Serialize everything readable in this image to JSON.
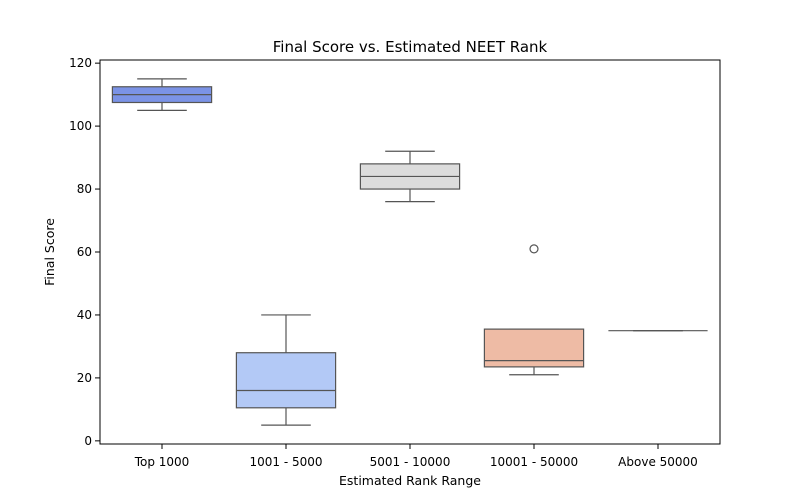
{
  "chart_data": {
    "type": "box",
    "title": "Final Score vs. Estimated NEET Rank",
    "xlabel": "Estimated Rank Range",
    "ylabel": "Final Score",
    "ylim": [
      -1,
      121
    ],
    "yticks": [
      0,
      20,
      40,
      60,
      80,
      100,
      120
    ],
    "categories": [
      "Top 1000",
      "1001 - 5000",
      "5001 - 10000",
      "10001 - 50000",
      "Above 50000"
    ],
    "grid": false,
    "boxes": [
      {
        "category": "Top 1000",
        "whisker_low": 105,
        "q1": 107.5,
        "median": 110,
        "q3": 112.5,
        "whisker_high": 115,
        "outliers": [],
        "color": "#7b93e6"
      },
      {
        "category": "1001 - 5000",
        "whisker_low": 5,
        "q1": 10.5,
        "median": 16,
        "q3": 28,
        "whisker_high": 40,
        "outliers": [],
        "color": "#b3c9f6"
      },
      {
        "category": "5001 - 10000",
        "whisker_low": 76,
        "q1": 80,
        "median": 84,
        "q3": 88,
        "whisker_high": 92,
        "outliers": [],
        "color": "#dcdcdc"
      },
      {
        "category": "10001 - 50000",
        "whisker_low": 21,
        "q1": 23.5,
        "median": 25.5,
        "q3": 35.5,
        "whisker_high": 35.5,
        "outliers": [
          61
        ],
        "color": "#eebba5"
      },
      {
        "category": "Above 50000",
        "whisker_low": 35,
        "q1": 35,
        "median": 35,
        "q3": 35,
        "whisker_high": 35,
        "outliers": [],
        "color": "#e8a08a"
      }
    ]
  }
}
